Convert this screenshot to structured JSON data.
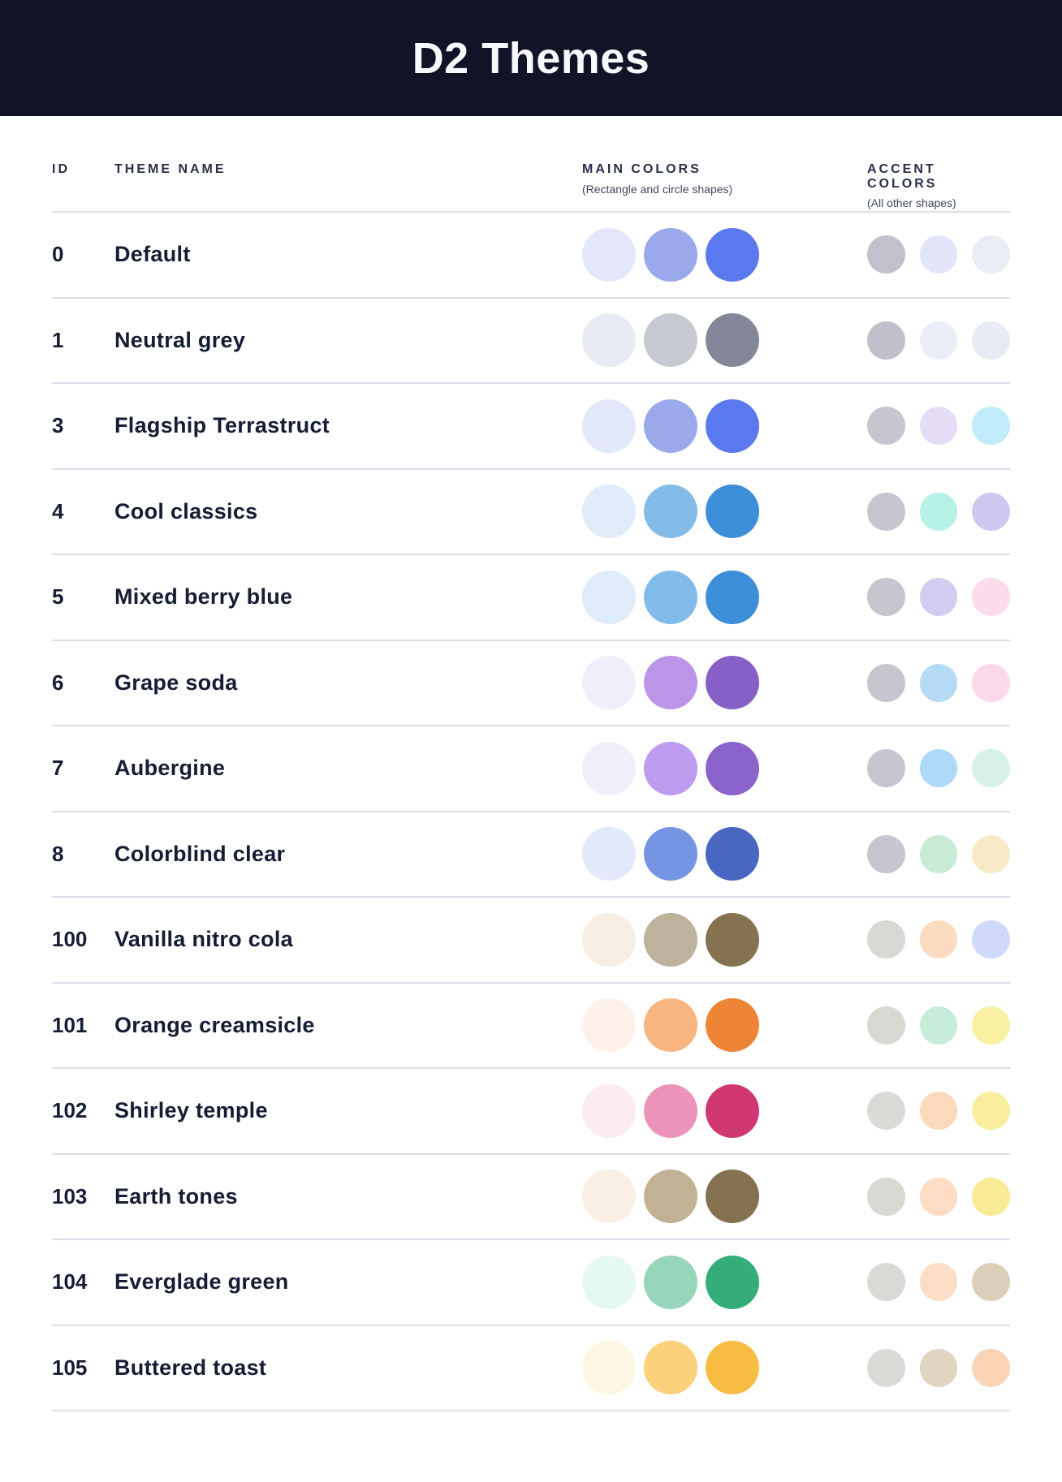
{
  "header": {
    "title": "D2 Themes"
  },
  "colors": {
    "header_background": "#101426",
    "header_text": "#F8F9FC",
    "body_text": "#161C33",
    "divider": "#DBDDE9"
  },
  "table": {
    "columns": {
      "id": "ID",
      "theme_name": "THEME NAME",
      "main_colors": "MAIN COLORS",
      "main_colors_sub": "(Rectangle and circle shapes)",
      "accent_colors": "ACCENT COLORS",
      "accent_colors_sub": "(All other shapes)"
    },
    "rows": [
      {
        "id": "0",
        "name": "Default",
        "main_colors": [
          "#E4E7FB",
          "#9AA8EC",
          "#5B79EE"
        ],
        "accent_colors": [
          "#C0C1CC",
          "#E2E4F8",
          "#EAECF5"
        ]
      },
      {
        "id": "1",
        "name": "Neutral grey",
        "main_colors": [
          "#E9EBF2",
          "#C7C9D1",
          "#84879A"
        ],
        "accent_colors": [
          "#BFC0CA",
          "#EAEDF5",
          "#E9EBF4"
        ]
      },
      {
        "id": "3",
        "name": "Flagship Terrastruct",
        "main_colors": [
          "#E3E7FA",
          "#9BA9EB",
          "#5B79EE"
        ],
        "accent_colors": [
          "#C6C7CE",
          "#E5DDF6",
          "#C0EBFA"
        ]
      },
      {
        "id": "4",
        "name": "Cool classics",
        "main_colors": [
          "#DEEDF9",
          "#83BCE9",
          "#3D8ED8"
        ],
        "accent_colors": [
          "#C6C7CE",
          "#B6F1E5",
          "#CFC8F1"
        ]
      },
      {
        "id": "5",
        "name": "Mixed berry blue",
        "main_colors": [
          "#DEEDF9",
          "#81BBE9",
          "#3C8ED8"
        ],
        "accent_colors": [
          "#C6C7CE",
          "#D4CCF1",
          "#FBDBEC"
        ]
      },
      {
        "id": "6",
        "name": "Grape soda",
        "main_colors": [
          "#F2EDFA",
          "#BB96E8",
          "#8660C5"
        ],
        "accent_colors": [
          "#C6C7CE",
          "#B5DAF6",
          "#FBD9EA"
        ]
      },
      {
        "id": "7",
        "name": "Aubergine",
        "main_colors": [
          "#F2EDFB",
          "#BD9BEF",
          "#8A64CA"
        ],
        "accent_colors": [
          "#C6C7CE",
          "#AFD9F8",
          "#D6F1E6"
        ]
      },
      {
        "id": "8",
        "name": "Colorblind clear",
        "main_colors": [
          "#E3E9FA",
          "#7594E1",
          "#4967C0"
        ],
        "accent_colors": [
          "#C5C6D0",
          "#C9EBD6",
          "#FAEBC8"
        ]
      },
      {
        "id": "100",
        "name": "Vanilla nitro cola",
        "main_colors": [
          "#F7EEE3",
          "#BDB29B",
          "#847250"
        ],
        "accent_colors": [
          "#D8D8D4",
          "#FBDCC1",
          "#CEDAF7"
        ]
      },
      {
        "id": "101",
        "name": "Orange creamsicle",
        "main_colors": [
          "#FDF1E9",
          "#F8B580",
          "#EE8435"
        ],
        "accent_colors": [
          "#D8D8D3",
          "#C6EDDA",
          "#FAF0A2"
        ]
      },
      {
        "id": "102",
        "name": "Shirley temple",
        "main_colors": [
          "#FCEAF1",
          "#EB93B9",
          "#D03670"
        ],
        "accent_colors": [
          "#DCDAD6",
          "#FBD9BB",
          "#F9EE9E"
        ]
      },
      {
        "id": "103",
        "name": "Earth tones",
        "main_colors": [
          "#F9EFE3",
          "#C1B295",
          "#837150"
        ],
        "accent_colors": [
          "#DAD8D3",
          "#FCDCC2",
          "#F9EB95"
        ]
      },
      {
        "id": "104",
        "name": "Everglade green",
        "main_colors": [
          "#E6F9F0",
          "#97D6BA",
          "#34AD7A"
        ],
        "accent_colors": [
          "#DBD9D5",
          "#FCDDC6",
          "#DCCFB9"
        ]
      },
      {
        "id": "105",
        "name": "Buttered toast",
        "main_colors": [
          "#FEF6E4",
          "#FBD17B",
          "#F7BC42"
        ],
        "accent_colors": [
          "#DBDAD7",
          "#E0D5C1",
          "#FBD3B5"
        ]
      }
    ]
  }
}
